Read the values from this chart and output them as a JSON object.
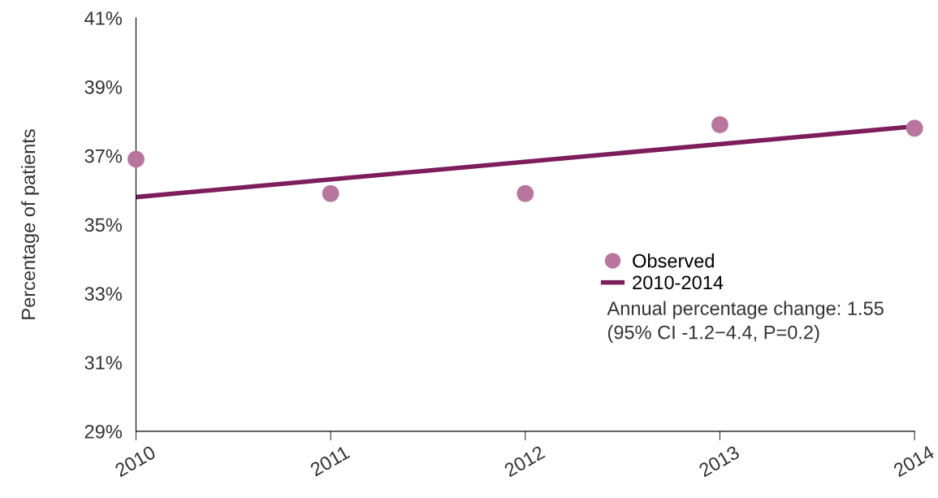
{
  "chart_data": {
    "type": "scatter",
    "ylabel": "Percentage of patients",
    "x": [
      2010,
      2011,
      2012,
      2013,
      2014
    ],
    "series": [
      {
        "name": "Observed",
        "color": "#b8769e",
        "marker": "circle",
        "values": [
          36.9,
          35.9,
          35.9,
          37.9,
          37.8
        ]
      },
      {
        "name": "2010-2014",
        "type": "line",
        "color": "#7d1d5c",
        "marker": "none",
        "line_style": "solid",
        "x": [
          2010,
          2014
        ],
        "values": [
          35.8,
          37.85
        ]
      }
    ],
    "xlim": [
      2010,
      2014
    ],
    "xticks": [
      2010,
      2011,
      2012,
      2013,
      2014
    ],
    "ylim": [
      29,
      41
    ],
    "yticks": [
      {
        "value": 29,
        "label": "29%"
      },
      {
        "value": 31,
        "label": "31%"
      },
      {
        "value": 33,
        "label": "33%"
      },
      {
        "value": 35,
        "label": "35%"
      },
      {
        "value": 37,
        "label": "37%"
      },
      {
        "value": 39,
        "label": "39%"
      },
      {
        "value": 41,
        "label": "41%"
      }
    ],
    "grid": false,
    "legend": "right",
    "annotations": [
      "Annual percentage change: 1.55",
      "(95% CI -1.2−4.4, P=0.2)"
    ]
  }
}
